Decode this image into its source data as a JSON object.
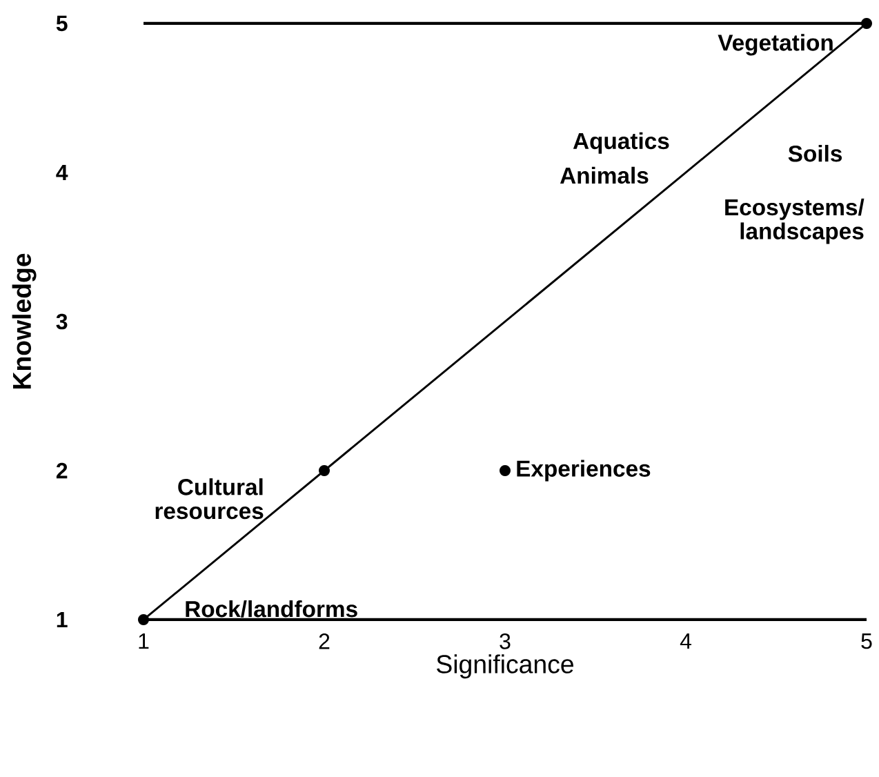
{
  "chart_data": {
    "type": "scatter",
    "xlabel": "Significance",
    "ylabel": "Knowledge",
    "xlim": [
      1,
      5
    ],
    "ylim": [
      1,
      5
    ],
    "xticks": [
      1,
      2,
      3,
      4,
      5
    ],
    "yticks": [
      1,
      2,
      3,
      4,
      5
    ],
    "grid": false,
    "series": [
      {
        "type": "line",
        "color": "#000000",
        "x": [
          1,
          5
        ],
        "values": [
          1,
          5
        ],
        "line_style": "solid"
      },
      {
        "color": "#000000",
        "x": [
          1,
          2,
          3,
          5
        ],
        "values": [
          1,
          2,
          2,
          5
        ],
        "marker": "circle"
      }
    ],
    "annotations": [
      {
        "text": "Vegetation",
        "x": 5,
        "y": 5
      },
      {
        "text": "Aquatics",
        "x": 4,
        "y": 4
      },
      {
        "text": "Animals",
        "x": 4,
        "y": 4
      },
      "Soils",
      "Ecosystems/ landscapes",
      {
        "text": "Cultural resources",
        "x": 2,
        "y": 2
      },
      {
        "text": "Experiences",
        "x": 3,
        "y": 2
      },
      {
        "text": "Rock/landforms",
        "x": 1,
        "y": 1
      }
    ]
  }
}
